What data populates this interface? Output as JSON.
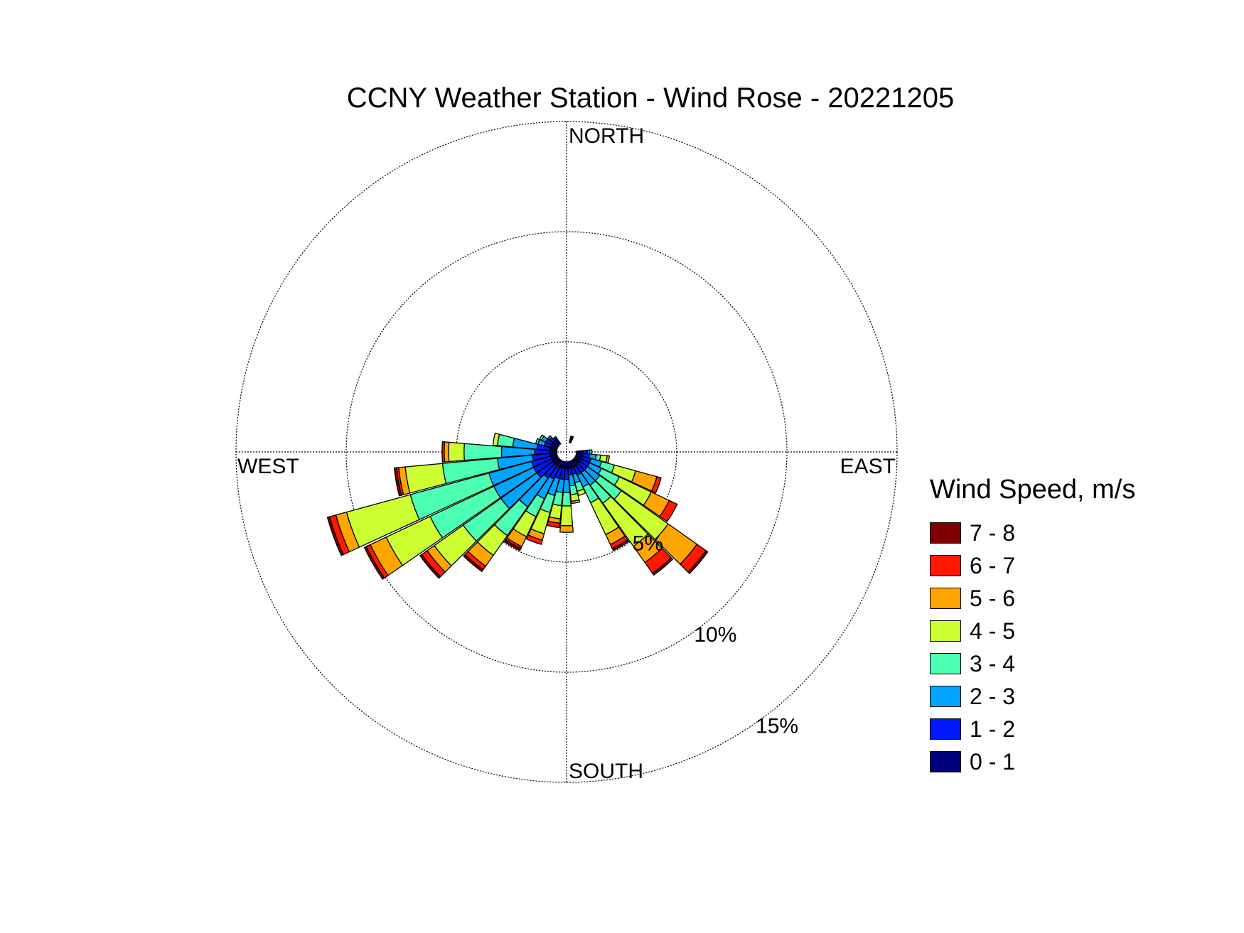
{
  "chart_data": {
    "type": "wind-rose",
    "title": "CCNY Weather Station - Wind Rose - 20221205",
    "direction_labels": {
      "north": "NORTH",
      "east": "EAST",
      "south": "SOUTH",
      "west": "WEST"
    },
    "radial_ticks": [
      "5%",
      "10%",
      "15%"
    ],
    "radial_tick_values": [
      5,
      10,
      15
    ],
    "rmax": 15,
    "legend_title": "Wind Speed, m/s",
    "legend_position": "right",
    "bins": [
      {
        "label": "0 - 1",
        "color": "#00007f"
      },
      {
        "label": "1 - 2",
        "color": "#0019ff"
      },
      {
        "label": "2 - 3",
        "color": "#00a5ff"
      },
      {
        "label": "3 - 4",
        "color": "#4cffb2"
      },
      {
        "label": "4 - 5",
        "color": "#ccff32"
      },
      {
        "label": "5 - 6",
        "color": "#ffa500"
      },
      {
        "label": "6 - 7",
        "color": "#ff1900"
      },
      {
        "label": "7 - 8",
        "color": "#7f0000"
      }
    ],
    "sectors": [
      {
        "direction": 100,
        "values": [
          0.3,
          0.3,
          0.3,
          0.2,
          0.3,
          0.1,
          0,
          0
        ]
      },
      {
        "direction": 110,
        "values": [
          0.3,
          0.4,
          0.5,
          0.6,
          1.0,
          1.0,
          0.2,
          0
        ]
      },
      {
        "direction": 120,
        "values": [
          0.3,
          0.4,
          0.6,
          0.9,
          1.6,
          0.9,
          0.4,
          0
        ]
      },
      {
        "direction": 130,
        "values": [
          0.3,
          0.4,
          0.7,
          1.2,
          2.6,
          1.6,
          0.5,
          0.1
        ]
      },
      {
        "direction": 140,
        "values": [
          0.3,
          0.4,
          0.7,
          1.0,
          2.4,
          0.9,
          0.6,
          0.1
        ]
      },
      {
        "direction": 150,
        "values": [
          0.3,
          0.4,
          0.6,
          0.8,
          1.6,
          0.5,
          0.2,
          0.1
        ]
      },
      {
        "direction": 160,
        "values": [
          0.3,
          0.3,
          0.4,
          0.4,
          0.2,
          0,
          0,
          0
        ]
      },
      {
        "direction": 170,
        "values": [
          0.3,
          0.3,
          0.5,
          0.4,
          0.3,
          0.1,
          0,
          0
        ]
      },
      {
        "direction": 180,
        "values": [
          0.3,
          0.5,
          0.6,
          0.6,
          0.9,
          0.3,
          0,
          0
        ]
      },
      {
        "direction": 190,
        "values": [
          0.3,
          0.5,
          0.6,
          0.6,
          0.6,
          0.2,
          0.2,
          0
        ]
      },
      {
        "direction": 200,
        "values": [
          0.3,
          0.5,
          0.8,
          0.8,
          1.0,
          0.3,
          0.2,
          0
        ]
      },
      {
        "direction": 210,
        "values": [
          0.3,
          0.6,
          1.0,
          0.9,
          1.0,
          0.5,
          0.1,
          0.1
        ]
      },
      {
        "direction": 220,
        "values": [
          0.3,
          0.7,
          1.6,
          1.6,
          1.1,
          0.6,
          0.2,
          0.1
        ]
      },
      {
        "direction": 230,
        "values": [
          0.3,
          0.9,
          2.0,
          2.1,
          1.6,
          0.4,
          0.3,
          0.1
        ]
      },
      {
        "direction": 240,
        "values": [
          0.3,
          0.9,
          2.0,
          3.2,
          2.2,
          0.8,
          0.2,
          0.1
        ]
      },
      {
        "direction": 250,
        "values": [
          0.3,
          0.9,
          2.0,
          3.7,
          3.0,
          0.5,
          0.3,
          0.1
        ]
      },
      {
        "direction": 260,
        "values": [
          0.3,
          0.8,
          1.6,
          2.5,
          1.7,
          0.3,
          0.1,
          0.1
        ]
      },
      {
        "direction": 270,
        "values": [
          0.3,
          0.7,
          1.5,
          1.7,
          0.7,
          0.2,
          0.1,
          0
        ]
      },
      {
        "direction": 280,
        "values": [
          0.3,
          0.6,
          1.1,
          0.7,
          0.2,
          0,
          0,
          0
        ]
      },
      {
        "direction": 290,
        "values": [
          0.3,
          0.3,
          0.3,
          0.1,
          0,
          0,
          0,
          0
        ]
      },
      {
        "direction": 300,
        "values": [
          0.3,
          0.3,
          0.2,
          0.1,
          0,
          0,
          0,
          0
        ]
      },
      {
        "direction": 310,
        "values": [
          0.3,
          0.2,
          0.1,
          0,
          0,
          0,
          0,
          0
        ]
      },
      {
        "direction": 320,
        "values": [
          0.3,
          0.1,
          0,
          0,
          0,
          0,
          0,
          0
        ]
      },
      {
        "direction": 20,
        "values": [
          0.2,
          0.1,
          0,
          0,
          0,
          0,
          0,
          0
        ]
      },
      {
        "direction": 90,
        "values": [
          0.3,
          0.2,
          0.1,
          0.1,
          0,
          0,
          0,
          0
        ]
      }
    ]
  }
}
